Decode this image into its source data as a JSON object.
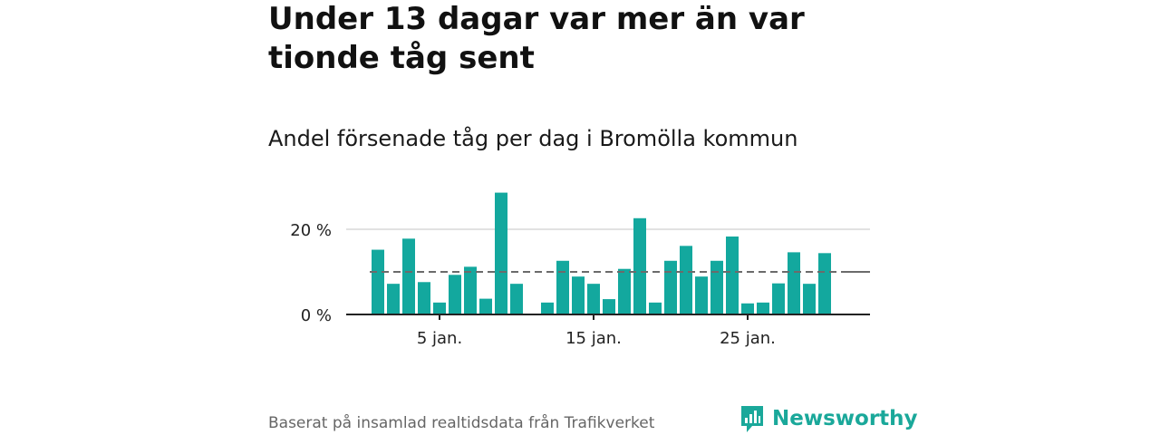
{
  "header": {
    "title": "Under 13 dagar var mer än var tionde tåg sent",
    "subtitle": "Andel försenade tåg per dag i Bromölla kommun"
  },
  "footer": {
    "source": "Baserat på insamlad realtidsdata från Trafikverket",
    "brand": "Newsworthy"
  },
  "colors": {
    "bar": "#13a89e",
    "reference_line": "#6b6b6b",
    "grid": "#d9d9d9",
    "brand": "#1aa89a"
  },
  "chart_data": {
    "type": "bar",
    "x": [
      1,
      2,
      3,
      4,
      5,
      6,
      7,
      8,
      9,
      10,
      11,
      12,
      13,
      14,
      15,
      16,
      17,
      18,
      19,
      20,
      21,
      22,
      23,
      24,
      25,
      26,
      27,
      28,
      29,
      30,
      31
    ],
    "values": [
      15.2,
      7.2,
      17.8,
      7.6,
      2.8,
      9.3,
      11.2,
      3.7,
      28.6,
      7.2,
      null,
      2.8,
      12.6,
      8.9,
      7.2,
      3.6,
      10.7,
      22.6,
      2.8,
      12.6,
      16.1,
      8.9,
      12.6,
      18.3,
      2.6,
      2.8,
      7.3,
      14.6,
      7.2,
      14.4,
      null
    ],
    "reference_line": 10,
    "ylim": [
      0,
      30
    ],
    "yticks": [
      0,
      20
    ],
    "ytick_labels": [
      "0 %",
      "20 %"
    ],
    "xticks": [
      5,
      15,
      25
    ],
    "xtick_labels": [
      "5 jan.",
      "15 jan.",
      "25 jan."
    ],
    "grid": true
  }
}
